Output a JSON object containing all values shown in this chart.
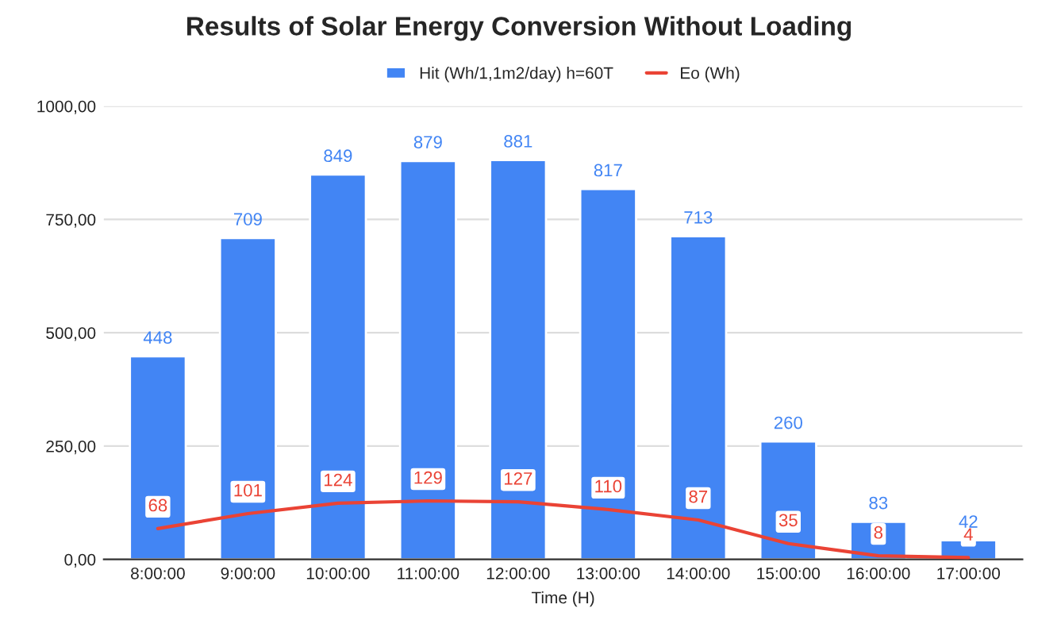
{
  "chart_data": {
    "type": "bar",
    "title": "Results of Solar Energy Conversion Without Loading",
    "xlabel": "Time (H)",
    "categories": [
      "8:00:00",
      "9:00:00",
      "10:00:00",
      "11:00:00",
      "12:00:00",
      "13:00:00",
      "14:00:00",
      "15:00:00",
      "16:00:00",
      "17:00:00"
    ],
    "series": [
      {
        "name": "Hit (Wh/1,1m2/day) h=60T",
        "color": "#4285f4",
        "values": [
          448,
          709,
          849,
          879,
          881,
          817,
          713,
          260,
          83,
          42
        ]
      },
      {
        "name": "Eo (Wh)",
        "color": "#ea4335",
        "type": "line",
        "values": [
          68,
          101,
          124,
          129,
          127,
          110,
          87,
          35,
          8,
          4
        ]
      }
    ],
    "ylim": [
      0,
      1000
    ],
    "yticks": [
      {
        "value": 0,
        "label": "0,00"
      },
      {
        "value": 250,
        "label": "250,00"
      },
      {
        "value": 500,
        "label": "500,00"
      },
      {
        "value": 750,
        "label": "750,00"
      },
      {
        "value": 1000,
        "label": "1000,00"
      }
    ],
    "grid": "y",
    "legend": "top",
    "data_labels": true,
    "marker": "none",
    "line_style": "solid"
  }
}
